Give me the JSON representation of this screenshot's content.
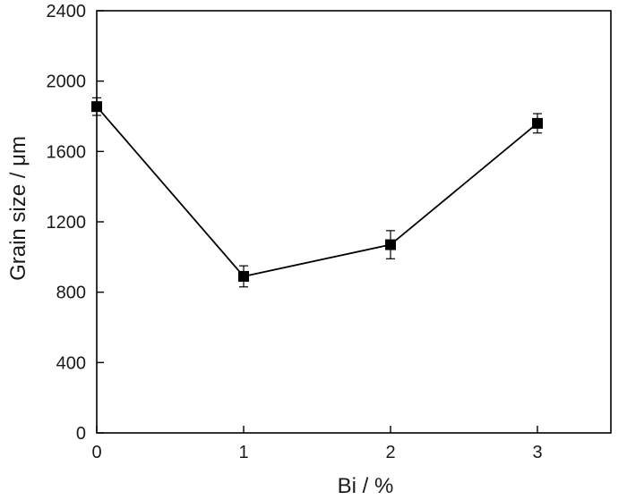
{
  "chart_data": {
    "type": "line",
    "title": "",
    "xlabel": "Bi / %",
    "ylabel": "Grain size / μm",
    "xlim": [
      0,
      3.5
    ],
    "ylim": [
      0,
      2400
    ],
    "x_ticks": [
      0,
      1,
      2,
      3
    ],
    "y_ticks": [
      0,
      400,
      800,
      1200,
      1600,
      2000,
      2400
    ],
    "grid": false,
    "legend": "none",
    "series": [
      {
        "marker": "square",
        "color": "#000000",
        "x": [
          0,
          1,
          2,
          3
        ],
        "y": [
          1855,
          890,
          1070,
          1760
        ],
        "error": [
          50,
          60,
          80,
          55
        ]
      }
    ]
  }
}
